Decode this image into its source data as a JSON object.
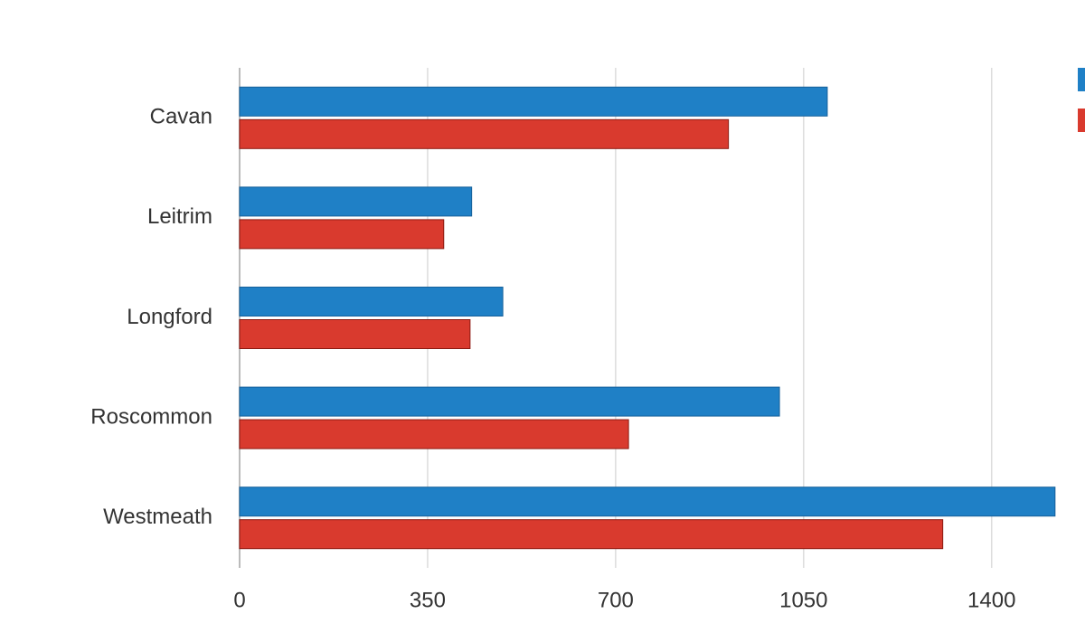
{
  "chart_data": {
    "type": "hbar",
    "categories": [
      "Cavan",
      "Leitrim",
      "Longford",
      "Roscommon",
      "Westmeath"
    ],
    "series": [
      {
        "color": "#1f80c6",
        "values": [
          1094,
          432,
          490,
          1005,
          1518
        ]
      },
      {
        "color": "#d93a2e",
        "values": [
          910,
          380,
          429,
          724,
          1309
        ]
      }
    ],
    "xlim": [
      0,
      1525
    ],
    "xticks": [
      0,
      350,
      700,
      1050,
      1400
    ],
    "grid": true
  }
}
